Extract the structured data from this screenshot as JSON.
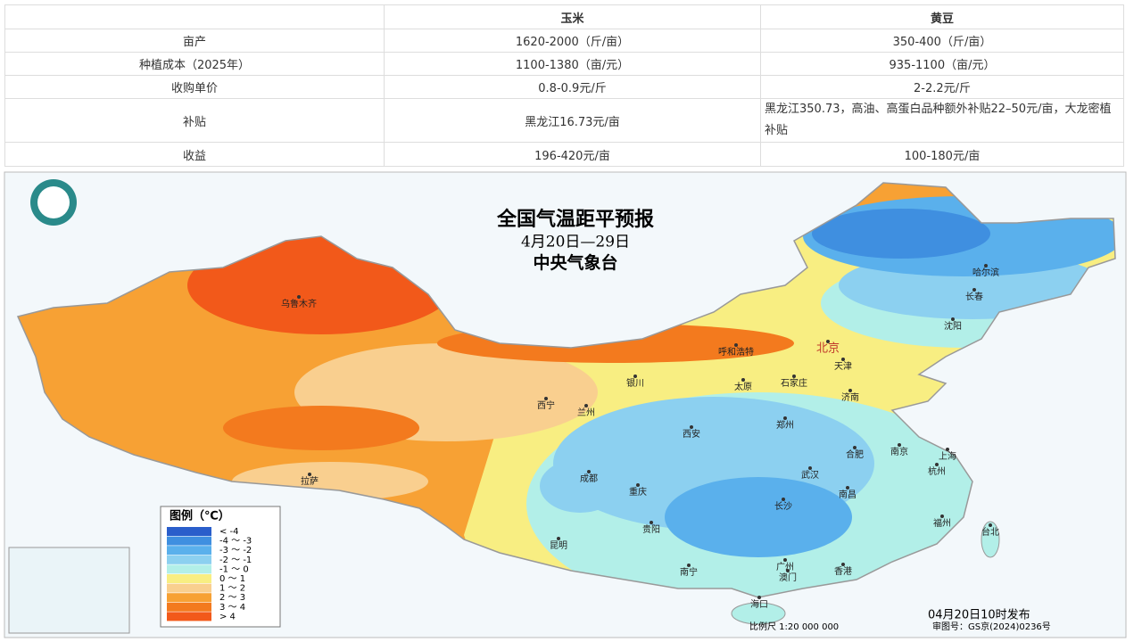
{
  "table": {
    "header": [
      "玉米",
      "黄豆"
    ],
    "rows": [
      [
        "亩产",
        "1620-2000（斤/亩）",
        "350-400（斤/亩）"
      ],
      [
        "种植成本（2025年）",
        "1100-1380（亩/元）",
        "935-1100（亩/元）"
      ],
      [
        "收购单价",
        "0.8-0.9元/斤",
        "2-2.2元/斤"
      ],
      [
        "补贴",
        "黑龙江16.73元/亩",
        "黑龙江350.73，高油、高蛋白品种额外补贴22–50元/亩，大龙密植补贴"
      ],
      [
        "收益",
        "196-420元/亩",
        "100-180元/亩"
      ]
    ]
  },
  "map": {
    "title": "全国气温距平预报",
    "subtitle": "4月20日—29日",
    "agency": "中央气象台",
    "legend": {
      "title": "图例（℃）",
      "items": [
        {
          "label": "< -4",
          "color": "#2a5ecb"
        },
        {
          "label": "-4 ～ -3",
          "color": "#3f8fe0"
        },
        {
          "label": "-3 ～ -2",
          "color": "#5ab0ec"
        },
        {
          "label": "-2 ～ -1",
          "color": "#8cd0f0"
        },
        {
          "label": "-1 ～ 0",
          "color": "#b2efe8"
        },
        {
          "label": "0 ～ 1",
          "color": "#f8ee82"
        },
        {
          "label": "1 ～ 2",
          "color": "#f9cf8f"
        },
        {
          "label": "2 ～ 3",
          "color": "#f7a134"
        },
        {
          "label": "3 ～ 4",
          "color": "#f37a1e"
        },
        {
          "label": "> 4",
          "color": "#f2591a"
        }
      ]
    },
    "cities": [
      "乌鲁木齐",
      "呼和浩特",
      "北京",
      "天津",
      "哈尔滨",
      "长春",
      "沈阳",
      "银川",
      "太原",
      "石家庄",
      "西宁",
      "兰州",
      "济南",
      "郑州",
      "西安",
      "合肥",
      "南京",
      "上海",
      "拉萨",
      "成都",
      "重庆",
      "武汉",
      "杭州",
      "长沙",
      "南昌",
      "贵阳",
      "昆明",
      "福州",
      "台北",
      "广州",
      "南宁",
      "澳门",
      "香港",
      "海口"
    ],
    "issued": "04月20日10时发布",
    "scale": "比例尺 1:20 000 000",
    "approval": "审图号：GS京(2024)0236号"
  }
}
